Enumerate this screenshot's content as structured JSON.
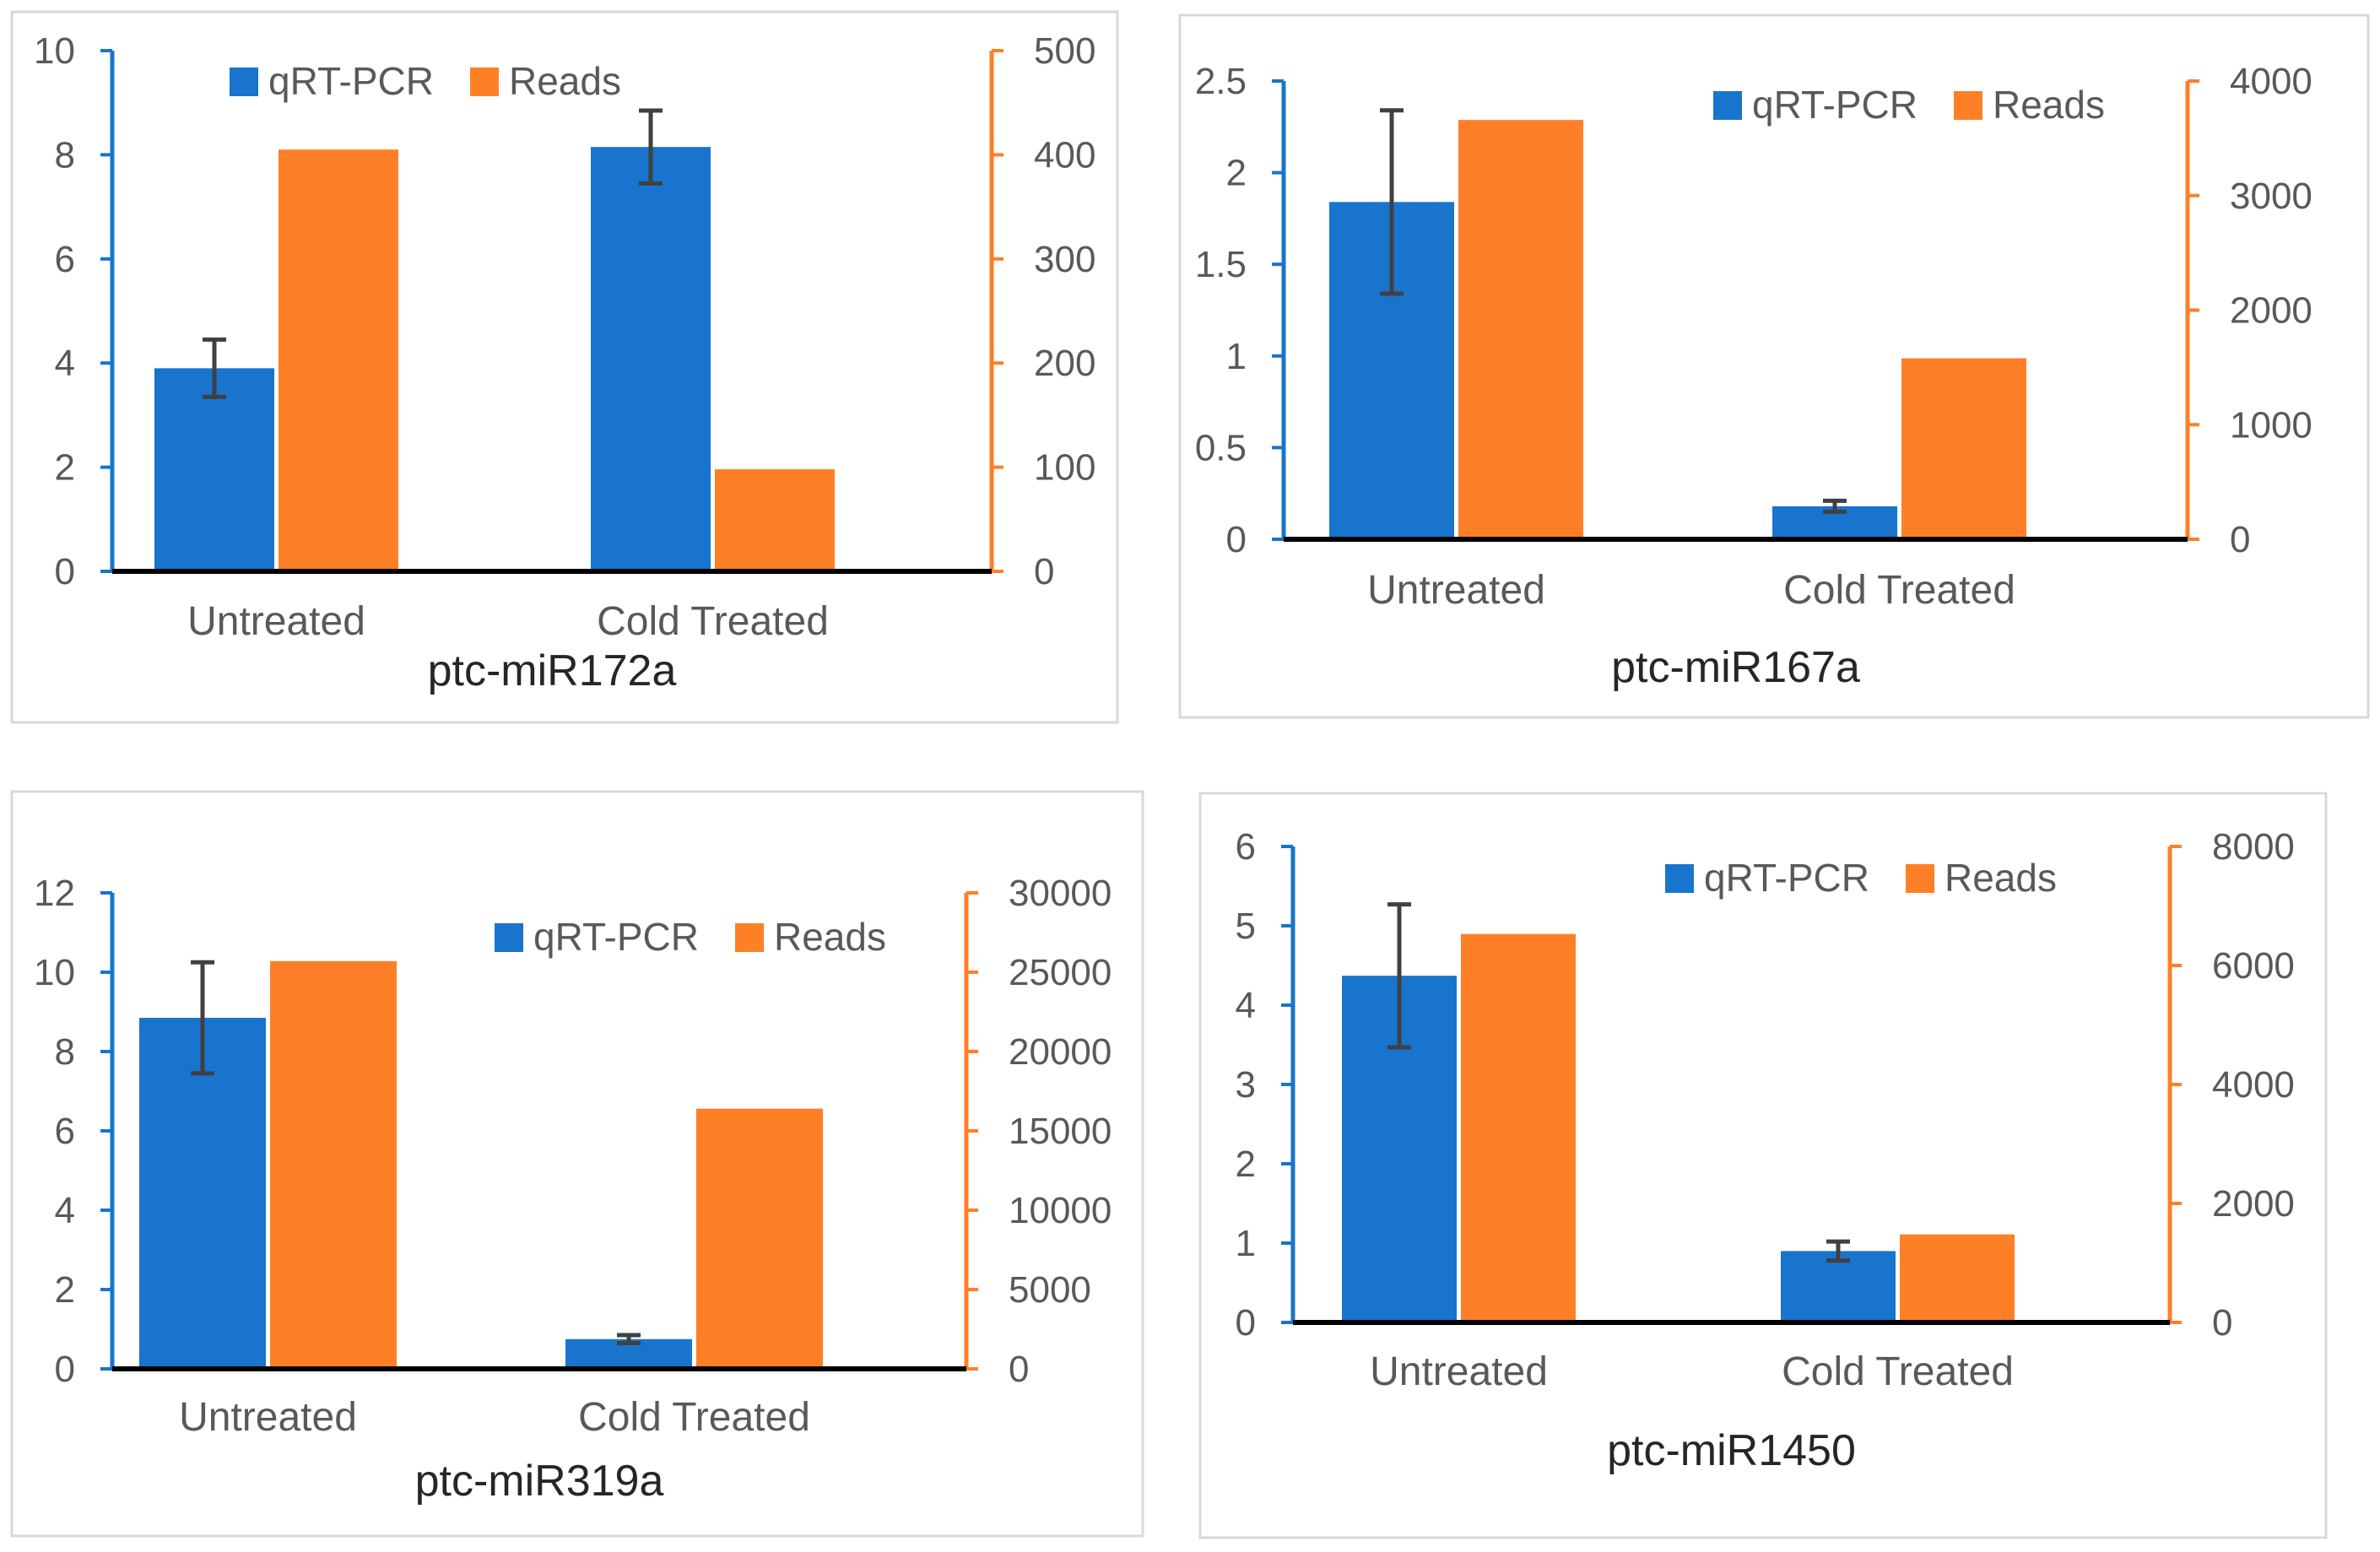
{
  "colors": {
    "qrt": "#1874CD",
    "reads": "#FF7F27",
    "axis_left": "#1874CD",
    "axis_right": "#FF7F27",
    "baseline": "#000000",
    "errorbar": "#404040",
    "panel_border": "#D9D9D9"
  },
  "chart_data": [
    {
      "type": "bar",
      "title": "ptc-miR172a",
      "categories": [
        "Untreated",
        "Cold Treated"
      ],
      "legend": [
        "qRT-PCR",
        "Reads"
      ],
      "left_axis": {
        "ylim": [
          0,
          10
        ],
        "ticks": [
          "0",
          "2",
          "4",
          "6",
          "8",
          "10"
        ]
      },
      "right_axis": {
        "ylim": [
          0,
          500
        ],
        "ticks": [
          "0",
          "100",
          "200",
          "300",
          "400",
          "500"
        ]
      },
      "series": [
        {
          "name": "qRT-PCR",
          "axis": "left",
          "values": [
            3.9,
            8.15
          ],
          "error": [
            0.55,
            0.7
          ]
        },
        {
          "name": "Reads",
          "axis": "right",
          "values": [
            405,
            98
          ]
        }
      ]
    },
    {
      "type": "bar",
      "title": "ptc-miR167a",
      "categories": [
        "Untreated",
        "Cold Treated"
      ],
      "legend": [
        "qRT-PCR",
        "Reads"
      ],
      "left_axis": {
        "ylim": [
          0,
          2.5
        ],
        "ticks": [
          "0",
          "0.5",
          "1",
          "1.5",
          "2",
          "2.5"
        ]
      },
      "right_axis": {
        "ylim": [
          0,
          4000
        ],
        "ticks": [
          "0",
          "1000",
          "2000",
          "3000",
          "4000"
        ]
      },
      "series": [
        {
          "name": "qRT-PCR",
          "axis": "left",
          "values": [
            1.84,
            0.18
          ],
          "error": [
            0.5,
            0.03
          ]
        },
        {
          "name": "Reads",
          "axis": "right",
          "values": [
            3660,
            1580
          ]
        }
      ]
    },
    {
      "type": "bar",
      "title": "ptc-miR319a",
      "categories": [
        "Untreated",
        "Cold Treated"
      ],
      "legend": [
        "qRT-PCR",
        "Reads"
      ],
      "left_axis": {
        "ylim": [
          0,
          12
        ],
        "ticks": [
          "0",
          "2",
          "4",
          "6",
          "8",
          "10",
          "12"
        ]
      },
      "right_axis": {
        "ylim": [
          0,
          30000
        ],
        "ticks": [
          "0",
          "5000",
          "10000",
          "15000",
          "20000",
          "25000",
          "30000"
        ]
      },
      "series": [
        {
          "name": "qRT-PCR",
          "axis": "left",
          "values": [
            8.85,
            0.75
          ],
          "error": [
            1.4,
            0.1
          ]
        },
        {
          "name": "Reads",
          "axis": "right",
          "values": [
            25700,
            16400
          ]
        }
      ]
    },
    {
      "type": "bar",
      "title": "ptc-miR1450",
      "categories": [
        "Untreated",
        "Cold Treated"
      ],
      "legend": [
        "qRT-PCR",
        "Reads"
      ],
      "left_axis": {
        "ylim": [
          0,
          6
        ],
        "ticks": [
          "0",
          "1",
          "2",
          "3",
          "4",
          "5",
          "6"
        ]
      },
      "right_axis": {
        "ylim": [
          0,
          8000
        ],
        "ticks": [
          "0",
          "2000",
          "4000",
          "6000",
          "8000"
        ]
      },
      "series": [
        {
          "name": "qRT-PCR",
          "axis": "left",
          "values": [
            4.37,
            0.9
          ],
          "error": [
            0.9,
            0.12
          ]
        },
        {
          "name": "Reads",
          "axis": "right",
          "values": [
            6530,
            1480
          ]
        }
      ]
    }
  ]
}
